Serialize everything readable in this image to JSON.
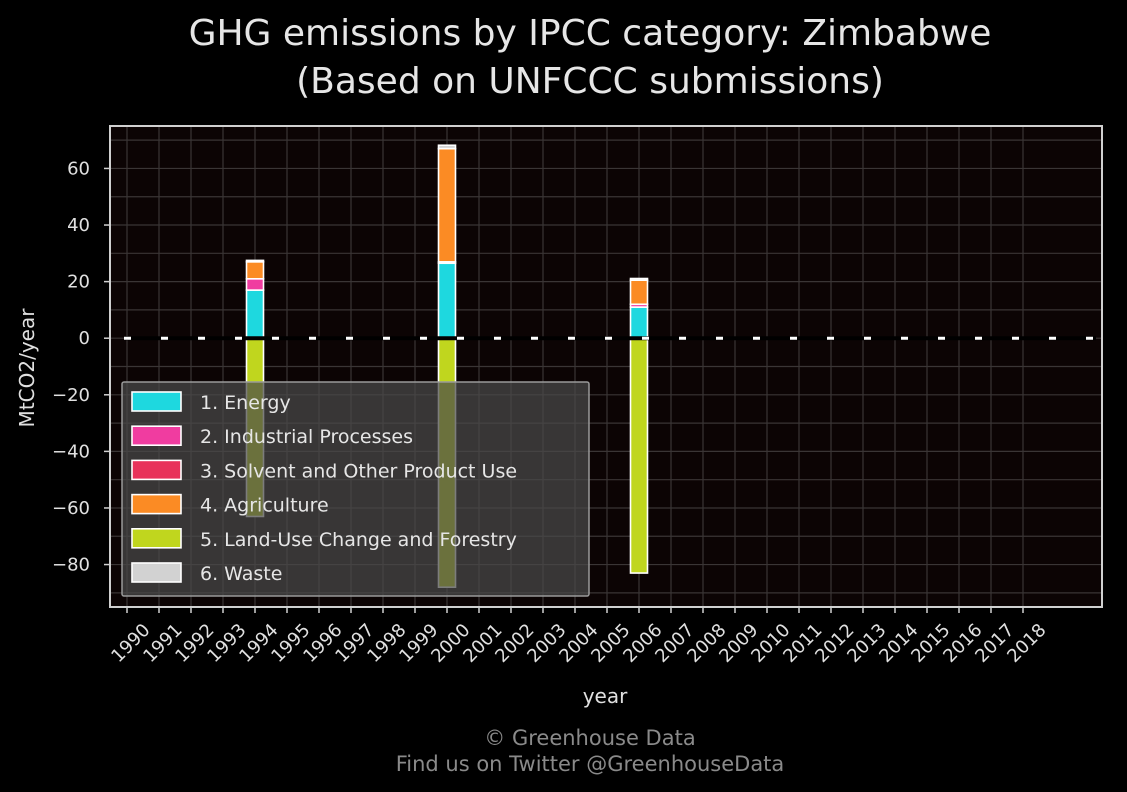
{
  "chart_data": {
    "type": "bar",
    "stacked": true,
    "title_line1": "GHG emissions by IPCC category: Zimbabwe",
    "title_line2": "(Based on UNFCCC submissions)",
    "xlabel": "year",
    "ylabel": "MtCO2/year",
    "categories": [
      "1990",
      "1991",
      "1992",
      "1993",
      "1994",
      "1995",
      "1996",
      "1997",
      "1998",
      "1999",
      "2000",
      "2001",
      "2002",
      "2003",
      "2004",
      "2005",
      "2006",
      "2007",
      "2008",
      "2009",
      "2010",
      "2011",
      "2012",
      "2013",
      "2014",
      "2015",
      "2016",
      "2017",
      "2018"
    ],
    "ylim": [
      -95,
      75
    ],
    "yticks": [
      60,
      40,
      20,
      0,
      -20,
      -40,
      -60,
      -80
    ],
    "ytick_labels": [
      "60",
      "40",
      "20",
      "0",
      "−20",
      "−40",
      "−60",
      "−80"
    ],
    "grid": true,
    "legend_position": "lower-left",
    "zero_line": "dashed",
    "series": [
      {
        "name": "1. Energy",
        "color": "#1ed8df",
        "values": [
          null,
          null,
          null,
          null,
          17,
          null,
          null,
          null,
          null,
          null,
          26.5,
          null,
          null,
          null,
          null,
          null,
          11,
          null,
          null,
          null,
          null,
          null,
          null,
          null,
          null,
          null,
          null,
          null,
          null
        ]
      },
      {
        "name": "2. Industrial Processes",
        "color": "#f03ca0",
        "values": [
          null,
          null,
          null,
          null,
          4,
          null,
          null,
          null,
          null,
          null,
          0.5,
          null,
          null,
          null,
          null,
          null,
          1,
          null,
          null,
          null,
          null,
          null,
          null,
          null,
          null,
          null,
          null,
          null,
          null
        ]
      },
      {
        "name": "3. Solvent and Other Product Use",
        "color": "#e8325a",
        "values": [
          null,
          null,
          null,
          null,
          0,
          null,
          null,
          null,
          null,
          null,
          0,
          null,
          null,
          null,
          null,
          null,
          0,
          null,
          null,
          null,
          null,
          null,
          null,
          null,
          null,
          null,
          null,
          null,
          null
        ]
      },
      {
        "name": "4. Agriculture",
        "color": "#fb8b24",
        "values": [
          null,
          null,
          null,
          null,
          6,
          null,
          null,
          null,
          null,
          null,
          40,
          null,
          null,
          null,
          null,
          null,
          8.5,
          null,
          null,
          null,
          null,
          null,
          null,
          null,
          null,
          null,
          null,
          null,
          null
        ]
      },
      {
        "name": "5. Land-Use Change and Forestry",
        "color": "#c0d61e",
        "values": [
          null,
          null,
          null,
          null,
          -63,
          null,
          null,
          null,
          null,
          null,
          -88,
          null,
          null,
          null,
          null,
          null,
          -83,
          null,
          null,
          null,
          null,
          null,
          null,
          null,
          null,
          null,
          null,
          null,
          null
        ]
      },
      {
        "name": "6. Waste",
        "color": "#d2d2d2",
        "values": [
          null,
          null,
          null,
          null,
          0.5,
          null,
          null,
          null,
          null,
          null,
          1.2,
          null,
          null,
          null,
          null,
          null,
          0.6,
          null,
          null,
          null,
          null,
          null,
          null,
          null,
          null,
          null,
          null,
          null,
          null
        ]
      }
    ]
  },
  "credits": {
    "line1": "© Greenhouse Data",
    "line2": "Find us on Twitter @GreenhouseData"
  },
  "colors": {
    "background": "#000000",
    "plot_background": "#0c0404",
    "grid": "#3a3535",
    "frame": "#d0d0d0",
    "text": "#e0e0e0",
    "credit": "#8a8a8a"
  }
}
